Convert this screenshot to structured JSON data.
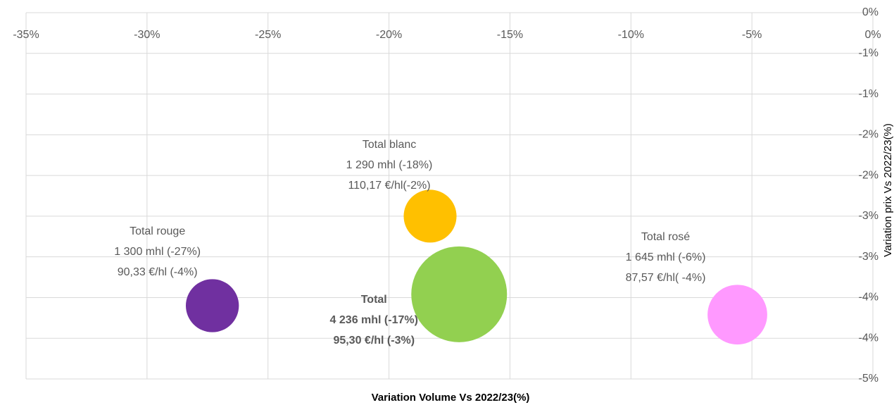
{
  "chart_data": {
    "type": "bubble",
    "x_label": "Variation Volume Vs 2022/23(%)",
    "y_label": "Variation prix Vs 2022/23(%)",
    "xlim": [
      -35,
      0
    ],
    "xticks": [
      {
        "value": -35,
        "label": "-35%"
      },
      {
        "value": -30,
        "label": "-30%"
      },
      {
        "value": -25,
        "label": "-25%"
      },
      {
        "value": -20,
        "label": "-20%"
      },
      {
        "value": -15,
        "label": "-15%"
      },
      {
        "value": -10,
        "label": "-10%"
      },
      {
        "value": -5,
        "label": "-5%"
      },
      {
        "value": 0,
        "label": "0%"
      }
    ],
    "ylim": [
      -4.5,
      0
    ],
    "yticks": [
      {
        "value": 0,
        "label": "0%"
      },
      {
        "value": -0.5,
        "label": "-1%"
      },
      {
        "value": -1,
        "label": "-1%"
      },
      {
        "value": -1.5,
        "label": "-2%"
      },
      {
        "value": -2,
        "label": "-2%"
      },
      {
        "value": -2.5,
        "label": "-3%"
      },
      {
        "value": -3,
        "label": "-3%"
      },
      {
        "value": -3.5,
        "label": "-4%"
      },
      {
        "value": -4,
        "label": "-4%"
      },
      {
        "value": -4.5,
        "label": "-5%"
      }
    ],
    "grid": true,
    "series": [
      {
        "name": "Total rouge",
        "color": "#7030a0",
        "x": [
          -27.3
        ],
        "values": [
          -3.6
        ],
        "sizes": [
          1300
        ],
        "label": [
          "1 300 mhl (-27%)",
          "90,33 €/hl (-4%)"
        ]
      },
      {
        "name": "Total blanc",
        "color": "#ffc000",
        "x": [
          -18.3
        ],
        "values": [
          -2.5
        ],
        "sizes": [
          1290
        ],
        "label": [
          "1 290 mhl (-18%)",
          "110,17 €/hl(-2%)"
        ]
      },
      {
        "name": "Total",
        "color": "#92d050",
        "x": [
          -17.1
        ],
        "values": [
          -3.46
        ],
        "sizes": [
          4236
        ],
        "label": [
          "4 236 mhl (-17%)",
          "95,30 €/hl (-3%)"
        ],
        "bold": true
      },
      {
        "name": "Total rosé",
        "color": "#ff99ff",
        "x": [
          -5.6
        ],
        "values": [
          -3.71
        ],
        "sizes": [
          1645
        ],
        "label": [
          "1 645 mhl (-6%)",
          "87,57 €/hl( -4%)"
        ]
      }
    ]
  }
}
